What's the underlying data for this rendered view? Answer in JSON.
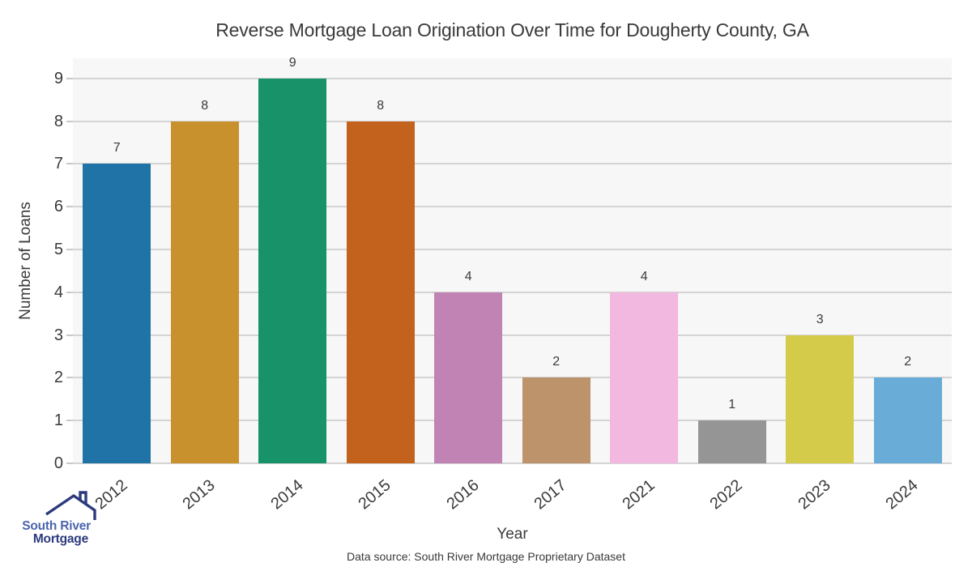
{
  "chart_data": {
    "type": "bar",
    "title": "Reverse Mortgage Loan Origination Over Time for Dougherty County, GA",
    "xlabel": "Year",
    "ylabel": "Number of Loans",
    "categories": [
      "2012",
      "2013",
      "2014",
      "2015",
      "2016",
      "2017",
      "2021",
      "2022",
      "2023",
      "2024"
    ],
    "values": [
      7,
      8,
      9,
      8,
      4,
      2,
      4,
      1,
      3,
      2
    ],
    "bar_colors": [
      "#1f73a6",
      "#c8912d",
      "#189269",
      "#c2621d",
      "#c083b4",
      "#bd936c",
      "#f2b8df",
      "#959595",
      "#d5cb4a",
      "#69acd7"
    ],
    "yticks": [
      0,
      1,
      2,
      3,
      4,
      5,
      6,
      7,
      8,
      9
    ],
    "ylim": [
      0,
      9.47
    ],
    "grid": "horizontal",
    "legend": "none",
    "x_tick_rotation_deg": 40,
    "plot_bg_color": "#f7f7f7",
    "grid_color": "#d4d4d4",
    "tick_mark_color": "#c9c9c9",
    "text_color": "#3a3a3a"
  },
  "source_note": "Data source: South River Mortgage Proprietary Dataset",
  "logo": {
    "line1": "South River",
    "line2": "Mortgage",
    "line1_color": "#4a65ae",
    "line2_color": "#2c3a7d",
    "roof_color": "#2c3a7d"
  }
}
